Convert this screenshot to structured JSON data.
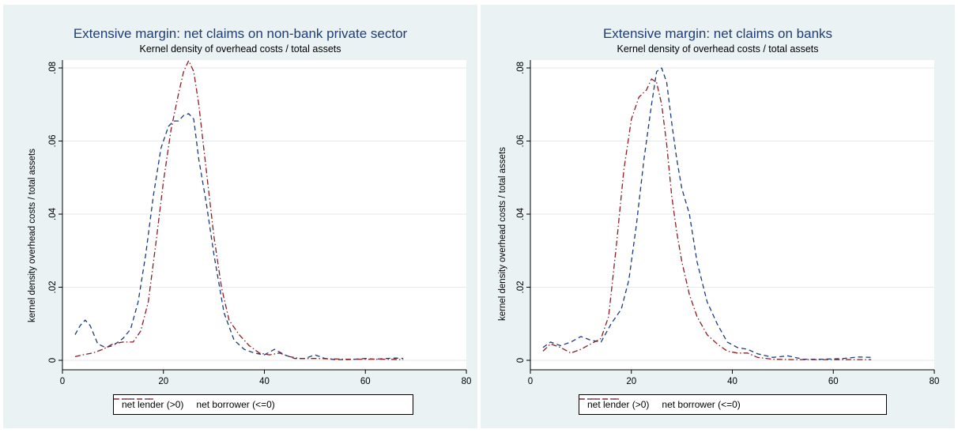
{
  "colors": {
    "lender": "#1a3b7c",
    "borrower": "#8b1c24",
    "panel_bg": "#eaf2f3",
    "grid": "#e6eaea"
  },
  "legend": {
    "lender_label": "net lender (>0)",
    "borrower_label": "net borrower (<=0)"
  },
  "chart_data": [
    {
      "type": "line",
      "title": "Extensive margin: net claims on non-bank private sector",
      "subtitle": "Kernel density of overhead costs / total assets",
      "xlabel": "",
      "ylabel": "kernel density overhead costs / total assets",
      "xlim": [
        0,
        80
      ],
      "ylim": [
        0,
        0.08
      ],
      "xticks": [
        0,
        20,
        40,
        60,
        80
      ],
      "yticks": [
        0,
        0.02,
        0.04,
        0.06,
        0.08
      ],
      "ytick_labels": [
        "0",
        ".02",
        ".04",
        ".06",
        ".08"
      ],
      "grid": true,
      "legend_position": "bottom",
      "series": [
        {
          "name": "net lender (>0)",
          "x": [
            2.5,
            3.5,
            4.5,
            5.5,
            7,
            8.5,
            10,
            12,
            13.5,
            15,
            16.5,
            18,
            19.5,
            21,
            22,
            23,
            24,
            25,
            26,
            27,
            28.5,
            30,
            32,
            34,
            36,
            38,
            40,
            42,
            44,
            46,
            48,
            50,
            52,
            54,
            56,
            58,
            60,
            62,
            64,
            66,
            67.5
          ],
          "y": [
            0.007,
            0.0095,
            0.011,
            0.0095,
            0.0045,
            0.0035,
            0.004,
            0.006,
            0.0085,
            0.016,
            0.029,
            0.045,
            0.058,
            0.064,
            0.0655,
            0.0655,
            0.067,
            0.0675,
            0.066,
            0.055,
            0.043,
            0.029,
            0.013,
            0.0055,
            0.003,
            0.002,
            0.0015,
            0.003,
            0.0015,
            0.0005,
            0.0005,
            0.0015,
            0.0005,
            0.0002,
            0.0002,
            0.0003,
            0.0005,
            0.0003,
            0.0005,
            0.0006,
            0.0005
          ]
        },
        {
          "name": "net borrower (<=0)",
          "x": [
            2.5,
            4,
            6,
            8,
            10,
            12,
            14,
            15.5,
            17,
            18.5,
            20,
            21.5,
            23,
            24,
            25,
            26,
            27,
            28,
            29,
            30,
            31.5,
            33,
            35,
            37,
            39,
            41,
            43,
            45,
            47,
            50,
            53,
            56,
            60,
            64,
            67.5
          ],
          "y": [
            0.001,
            0.0015,
            0.002,
            0.003,
            0.0045,
            0.005,
            0.005,
            0.008,
            0.016,
            0.032,
            0.049,
            0.063,
            0.073,
            0.079,
            0.082,
            0.079,
            0.07,
            0.058,
            0.046,
            0.034,
            0.02,
            0.011,
            0.007,
            0.004,
            0.002,
            0.0015,
            0.002,
            0.001,
            0.0005,
            0.0005,
            0.0004,
            0.0003,
            0.0003,
            0.0003,
            0.0002
          ]
        }
      ]
    },
    {
      "type": "line",
      "title": "Extensive margin: net claims on banks",
      "subtitle": "Kernel density of overhead costs / total assets",
      "xlabel": "",
      "ylabel": "kernel density overhead costs / total assets",
      "xlim": [
        0,
        80
      ],
      "ylim": [
        0,
        0.08
      ],
      "xticks": [
        0,
        20,
        40,
        60,
        80
      ],
      "yticks": [
        0,
        0.02,
        0.04,
        0.06,
        0.08
      ],
      "ytick_labels": [
        "0",
        ".02",
        ".04",
        ".06",
        ".08"
      ],
      "grid": true,
      "legend_position": "bottom",
      "series": [
        {
          "name": "net lender (>0)",
          "x": [
            2.5,
            4,
            6,
            8,
            10,
            12,
            14,
            16,
            18,
            19.5,
            21,
            22.5,
            24,
            25,
            26,
            27,
            28,
            29,
            30,
            31.5,
            33,
            35,
            37,
            39,
            41,
            43,
            45,
            48,
            51,
            54,
            58,
            62,
            65,
            67.5
          ],
          "y": [
            0.0035,
            0.005,
            0.004,
            0.005,
            0.0065,
            0.0055,
            0.005,
            0.01,
            0.014,
            0.022,
            0.037,
            0.055,
            0.07,
            0.079,
            0.08,
            0.076,
            0.065,
            0.055,
            0.047,
            0.04,
            0.027,
            0.016,
            0.01,
            0.005,
            0.0035,
            0.003,
            0.0018,
            0.0008,
            0.0012,
            0.0003,
            0.0003,
            0.0005,
            0.0009,
            0.0008
          ]
        },
        {
          "name": "net borrower (<=0)",
          "x": [
            2.5,
            4,
            6,
            8,
            10,
            12,
            14,
            15.5,
            17,
            18.5,
            20,
            21.5,
            23,
            24,
            25,
            26,
            27,
            28,
            29,
            30,
            31.5,
            33,
            35,
            37,
            39,
            41,
            43,
            45,
            48,
            52,
            56,
            60,
            64,
            67.5
          ],
          "y": [
            0.0025,
            0.0045,
            0.0035,
            0.002,
            0.003,
            0.0045,
            0.006,
            0.012,
            0.031,
            0.052,
            0.066,
            0.072,
            0.074,
            0.077,
            0.076,
            0.07,
            0.059,
            0.045,
            0.035,
            0.027,
            0.018,
            0.012,
            0.007,
            0.0045,
            0.0025,
            0.002,
            0.002,
            0.0008,
            0.0003,
            0.0002,
            0.0002,
            0.0002,
            0.0002,
            0.0002
          ]
        }
      ]
    }
  ]
}
